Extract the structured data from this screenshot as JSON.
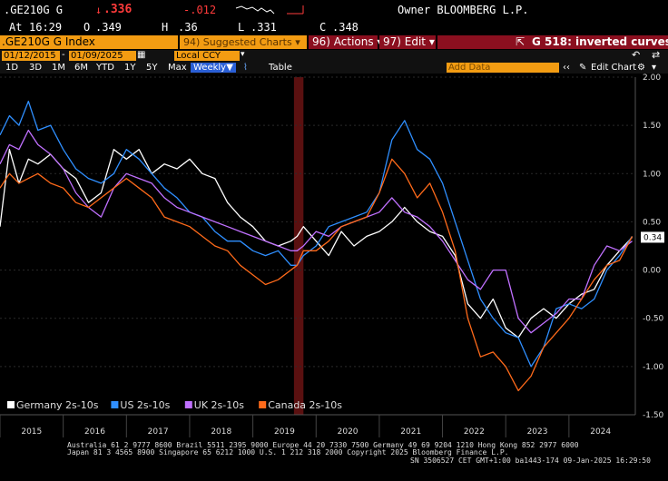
{
  "header": {
    "ticker": ".GE210G G",
    "last_arrow": "↓",
    "last": ".336",
    "change": "-.012",
    "at_label": "At",
    "time": "16:29",
    "open_label": "O",
    "open": ".349",
    "high_label": "H",
    "high": ".36",
    "low_label": "L",
    "low": ".331",
    "close_label": "C",
    "close": ".348",
    "owner": "Owner BLOOMBERG L.P."
  },
  "toolbar": {
    "security": ".GE210G G Index",
    "suggested": "94) Suggested Charts ▾",
    "actions": "96) Actions ▾",
    "edit": "97) Edit ▾",
    "chart_title": "G 518: inverted curves",
    "export_icon": "export-icon"
  },
  "dates": {
    "start": "01/12/2015",
    "end": "01/09/2025",
    "currency": "Local CCY"
  },
  "controls": {
    "periods": [
      "1D",
      "3D",
      "1M",
      "6M",
      "YTD",
      "1Y",
      "5Y",
      "Max"
    ],
    "frequency": "Weekly",
    "table": "Table",
    "add_data": "Add Data",
    "edit_chart": "Edit Chart"
  },
  "chart_data": {
    "type": "line",
    "title": "",
    "xlabel": "",
    "ylabel": "",
    "ylim": [
      -1.5,
      2.0
    ],
    "yticks": [
      "2.00",
      "1.50",
      "1.00",
      "0.50",
      "0.00",
      "-0.50",
      "-1.00",
      "-1.50"
    ],
    "yticks_values": [
      2.0,
      1.5,
      1.0,
      0.5,
      0.0,
      -0.5,
      -1.0,
      -1.5
    ],
    "x_years": [
      "2015",
      "2016",
      "2017",
      "2018",
      "2019",
      "2020",
      "2021",
      "2022",
      "2023",
      "2024"
    ],
    "last_value_label": "0.34",
    "shaded_region": {
      "start": 2019.65,
      "end": 2019.8,
      "color": "#5a1010"
    },
    "legend_position": "bottom-left",
    "grid": true,
    "series": [
      {
        "name": "Germany 2s-10s",
        "color": "#ffffff",
        "x": [
          2015.0,
          2015.15,
          2015.3,
          2015.45,
          2015.6,
          2015.8,
          2016.0,
          2016.2,
          2016.4,
          2016.6,
          2016.8,
          2017.0,
          2017.2,
          2017.4,
          2017.6,
          2017.8,
          2018.0,
          2018.2,
          2018.4,
          2018.6,
          2018.8,
          2019.0,
          2019.2,
          2019.4,
          2019.6,
          2019.7,
          2019.8,
          2020.0,
          2020.2,
          2020.4,
          2020.6,
          2020.8,
          2021.0,
          2021.2,
          2021.4,
          2021.6,
          2021.8,
          2022.0,
          2022.2,
          2022.4,
          2022.6,
          2022.8,
          2023.0,
          2023.2,
          2023.4,
          2023.6,
          2023.8,
          2024.0,
          2024.2,
          2024.4,
          2024.6,
          2024.8,
          2025.0
        ],
        "values": [
          0.45,
          1.25,
          0.9,
          1.15,
          1.1,
          1.2,
          1.05,
          0.95,
          0.7,
          0.8,
          1.25,
          1.15,
          1.25,
          1.0,
          1.1,
          1.05,
          1.15,
          1.0,
          0.95,
          0.7,
          0.55,
          0.45,
          0.3,
          0.25,
          0.3,
          0.35,
          0.45,
          0.3,
          0.15,
          0.4,
          0.25,
          0.35,
          0.4,
          0.5,
          0.65,
          0.5,
          0.4,
          0.35,
          0.15,
          -0.35,
          -0.5,
          -0.3,
          -0.6,
          -0.7,
          -0.5,
          -0.4,
          -0.5,
          -0.35,
          -0.25,
          -0.2,
          0.05,
          0.2,
          0.34
        ]
      },
      {
        "name": "US 2s-10s",
        "color": "#2f8fff",
        "x": [
          2015.0,
          2015.15,
          2015.3,
          2015.45,
          2015.6,
          2015.8,
          2016.0,
          2016.2,
          2016.4,
          2016.6,
          2016.8,
          2017.0,
          2017.2,
          2017.4,
          2017.6,
          2017.8,
          2018.0,
          2018.2,
          2018.4,
          2018.6,
          2018.8,
          2019.0,
          2019.2,
          2019.4,
          2019.6,
          2019.7,
          2019.8,
          2020.0,
          2020.2,
          2020.4,
          2020.6,
          2020.8,
          2021.0,
          2021.2,
          2021.4,
          2021.6,
          2021.8,
          2022.0,
          2022.2,
          2022.4,
          2022.6,
          2022.8,
          2023.0,
          2023.2,
          2023.4,
          2023.6,
          2023.8,
          2024.0,
          2024.2,
          2024.4,
          2024.6,
          2024.8,
          2025.0
        ],
        "values": [
          1.4,
          1.6,
          1.5,
          1.75,
          1.45,
          1.5,
          1.25,
          1.05,
          0.95,
          0.9,
          1.0,
          1.25,
          1.15,
          1.0,
          0.85,
          0.75,
          0.6,
          0.55,
          0.4,
          0.3,
          0.3,
          0.2,
          0.15,
          0.2,
          0.05,
          0.05,
          0.15,
          0.25,
          0.45,
          0.5,
          0.55,
          0.6,
          0.8,
          1.35,
          1.55,
          1.25,
          1.15,
          0.9,
          0.5,
          0.1,
          -0.3,
          -0.5,
          -0.65,
          -0.7,
          -1.0,
          -0.8,
          -0.4,
          -0.35,
          -0.4,
          -0.3,
          0.0,
          0.15,
          0.35
        ]
      },
      {
        "name": "UK 2s-10s",
        "color": "#c070ff",
        "x": [
          2015.0,
          2015.15,
          2015.3,
          2015.45,
          2015.6,
          2015.8,
          2016.0,
          2016.2,
          2016.4,
          2016.6,
          2016.8,
          2017.0,
          2017.2,
          2017.4,
          2017.6,
          2017.8,
          2018.0,
          2018.2,
          2018.4,
          2018.6,
          2018.8,
          2019.0,
          2019.2,
          2019.4,
          2019.6,
          2019.7,
          2019.8,
          2020.0,
          2020.2,
          2020.4,
          2020.6,
          2020.8,
          2021.0,
          2021.2,
          2021.4,
          2021.6,
          2021.8,
          2022.0,
          2022.2,
          2022.4,
          2022.6,
          2022.8,
          2023.0,
          2023.2,
          2023.4,
          2023.6,
          2023.8,
          2024.0,
          2024.2,
          2024.4,
          2024.6,
          2024.8,
          2025.0
        ],
        "values": [
          1.1,
          1.3,
          1.25,
          1.45,
          1.3,
          1.2,
          1.05,
          0.8,
          0.65,
          0.55,
          0.85,
          1.0,
          0.95,
          0.9,
          0.75,
          0.65,
          0.6,
          0.55,
          0.5,
          0.45,
          0.4,
          0.35,
          0.3,
          0.25,
          0.2,
          0.2,
          0.25,
          0.4,
          0.35,
          0.45,
          0.5,
          0.55,
          0.6,
          0.75,
          0.6,
          0.55,
          0.45,
          0.3,
          0.1,
          -0.1,
          -0.2,
          0.0,
          0.0,
          -0.5,
          -0.65,
          -0.55,
          -0.45,
          -0.3,
          -0.3,
          0.05,
          0.25,
          0.2,
          0.3
        ]
      },
      {
        "name": "Canada 2s-10s",
        "color": "#ff6a1a",
        "x": [
          2015.0,
          2015.15,
          2015.3,
          2015.45,
          2015.6,
          2015.8,
          2016.0,
          2016.2,
          2016.4,
          2016.6,
          2016.8,
          2017.0,
          2017.2,
          2017.4,
          2017.6,
          2017.8,
          2018.0,
          2018.2,
          2018.4,
          2018.6,
          2018.8,
          2019.0,
          2019.2,
          2019.4,
          2019.6,
          2019.7,
          2019.8,
          2020.0,
          2020.2,
          2020.4,
          2020.6,
          2020.8,
          2021.0,
          2021.2,
          2021.4,
          2021.6,
          2021.8,
          2022.0,
          2022.2,
          2022.4,
          2022.6,
          2022.8,
          2023.0,
          2023.2,
          2023.4,
          2023.6,
          2023.8,
          2024.0,
          2024.2,
          2024.4,
          2024.6,
          2024.8,
          2025.0
        ],
        "values": [
          0.85,
          1.0,
          0.9,
          0.95,
          1.0,
          0.9,
          0.85,
          0.7,
          0.65,
          0.75,
          0.85,
          0.95,
          0.85,
          0.75,
          0.55,
          0.5,
          0.45,
          0.35,
          0.25,
          0.2,
          0.05,
          -0.05,
          -0.15,
          -0.1,
          0.0,
          0.05,
          0.2,
          0.2,
          0.3,
          0.45,
          0.5,
          0.55,
          0.8,
          1.15,
          1.0,
          0.75,
          0.9,
          0.6,
          0.2,
          -0.5,
          -0.9,
          -0.85,
          -1.0,
          -1.25,
          -1.1,
          -0.8,
          -0.65,
          -0.5,
          -0.3,
          -0.1,
          0.05,
          0.1,
          0.35
        ]
      }
    ]
  },
  "footer": {
    "line1": "Australia 61 2 9777 8600 Brazil 5511 2395 9000 Europe 44 20 7330 7500 Germany 49 69 9204 1210 Hong Kong 852 2977 6000",
    "line2": "Japan 81 3 4565 8900      Singapore 65 6212 1000      U.S. 1 212 318 2000          Copyright 2025 Bloomberg Finance L.P.",
    "line3": "SN 3506527 CET  GMT+1:00 ba1443-174 09-Jan-2025 16:29:50"
  }
}
